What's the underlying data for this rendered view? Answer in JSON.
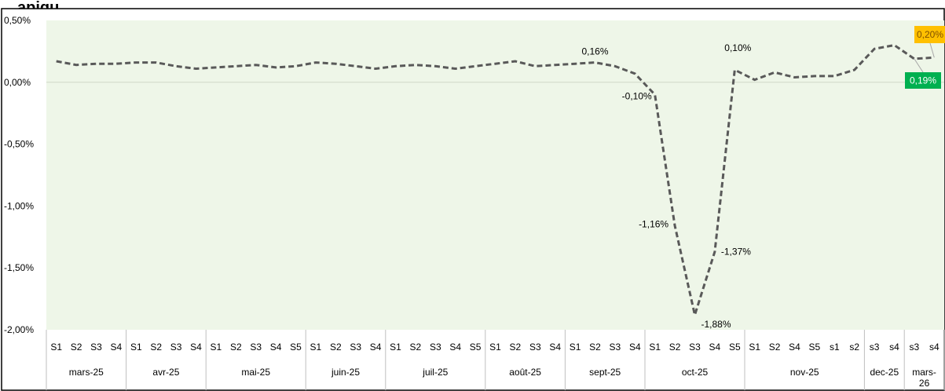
{
  "chart_data": {
    "type": "line",
    "title": "…apiqu",
    "xlabel": "",
    "ylabel": "",
    "ylim": [
      -2.0,
      0.5
    ],
    "y_ticks": [
      "0,50%",
      "0,00%",
      "-0,50%",
      "-1,00%",
      "-1,50%",
      "-2,00%"
    ],
    "y_tick_values": [
      0.5,
      0.0,
      -0.5,
      -1.0,
      -1.5,
      -2.0
    ],
    "plot_background": "#eef6e8",
    "line_color": "#595959",
    "line_style": "dashed",
    "grid": false,
    "months": [
      {
        "label": "mars-25",
        "weeks": [
          "S1",
          "S2",
          "S3",
          "S4"
        ]
      },
      {
        "label": "avr-25",
        "weeks": [
          "S1",
          "S2",
          "S3",
          "S4"
        ]
      },
      {
        "label": "mai-25",
        "weeks": [
          "S1",
          "S2",
          "S3",
          "S4",
          "S5"
        ]
      },
      {
        "label": "juin-25",
        "weeks": [
          "S1",
          "S2",
          "S3",
          "S4"
        ]
      },
      {
        "label": "juil-25",
        "weeks": [
          "S1",
          "S2",
          "S3",
          "S4",
          "S5"
        ]
      },
      {
        "label": "août-25",
        "weeks": [
          "S1",
          "S2",
          "S3",
          "S4"
        ]
      },
      {
        "label": "sept-25",
        "weeks": [
          "S1",
          "S2",
          "S3",
          "S4"
        ]
      },
      {
        "label": "oct-25",
        "weeks": [
          "S1",
          "S2",
          "S3",
          "S4",
          "S5"
        ]
      },
      {
        "label": "nov-25",
        "weeks": [
          "S1",
          "S2",
          "S4",
          "S5",
          "s1",
          "s2"
        ]
      },
      {
        "label": "dec-25",
        "weeks": [
          "s3",
          "s4"
        ]
      },
      {
        "label": "mars-26",
        "weeks": [
          "s3",
          "s4"
        ]
      }
    ],
    "series": [
      {
        "values": [
          0.17,
          0.14,
          0.15,
          0.15,
          0.16,
          0.16,
          0.13,
          0.11,
          0.12,
          0.13,
          0.14,
          0.12,
          0.13,
          0.16,
          0.15,
          0.13,
          0.11,
          0.13,
          0.14,
          0.13,
          0.11,
          0.13,
          0.15,
          0.17,
          0.13,
          0.14,
          0.15,
          0.16,
          0.13,
          0.07,
          -0.1,
          -1.16,
          -1.88,
          -1.37,
          0.1,
          0.02,
          0.08,
          0.04,
          0.05,
          0.05,
          0.1,
          0.27,
          0.3,
          0.19,
          0.2
        ]
      }
    ],
    "data_labels": [
      {
        "index": 27,
        "text": "0,16%"
      },
      {
        "index": 30,
        "text": "-0,10%"
      },
      {
        "index": 31,
        "text": "-1,16%"
      },
      {
        "index": 32,
        "text": "-1,88%"
      },
      {
        "index": 33,
        "text": "-1,37%"
      },
      {
        "index": 34,
        "text": "0,10%"
      }
    ],
    "callouts": [
      {
        "index": 44,
        "text": "0,20%",
        "background": "#ffc000",
        "text_color": "#7f4f00"
      },
      {
        "index": 43,
        "text": "0,19%",
        "background": "#00b050",
        "text_color": "#ffffff"
      }
    ]
  }
}
